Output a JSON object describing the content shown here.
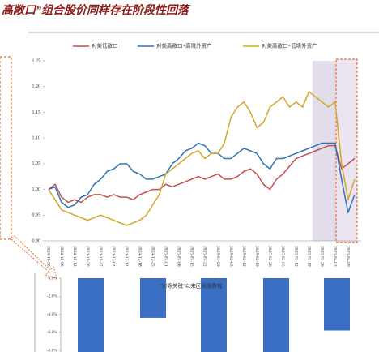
{
  "header": {
    "title": "高敞口”组合股价同样存在阶段性回落"
  },
  "chart_data": [
    {
      "type": "line",
      "categories": [
        "2024-10-30",
        null,
        "2024-11-06",
        null,
        "2024-11-13",
        null,
        "2024-11-20",
        null,
        "2024-11-27",
        null,
        "2024-12-04",
        null,
        "2024-12-11",
        null,
        "2024-12-18",
        null,
        "2024-12-25",
        null,
        "2025-01-01",
        null,
        "2025-01-08",
        null,
        "2025-01-15",
        null,
        "2025-01-22",
        null,
        "2025-01-29",
        null,
        "2025-02-05",
        null,
        "2025-02-12",
        null,
        "2025-02-19",
        null,
        "2025-02-26",
        null,
        "2025-03-05",
        null,
        "2025-03-12",
        null,
        "2025-03-19",
        null,
        "2025-03-26",
        null,
        "2025-04-02",
        null,
        "2025-04-09",
        null
      ],
      "series": [
        {
          "name": "对美低敞口",
          "color": "#c0504d",
          "values": [
            1.0,
            1.01,
            0.985,
            0.975,
            0.98,
            0.975,
            0.985,
            0.99,
            0.99,
            0.985,
            0.99,
            0.985,
            0.985,
            0.98,
            0.99,
            0.995,
            1.0,
            1.0,
            1.01,
            1.005,
            1.01,
            1.015,
            1.02,
            1.025,
            1.02,
            1.025,
            1.03,
            1.02,
            1.02,
            1.025,
            1.035,
            1.04,
            1.03,
            1.01,
            1.0,
            1.02,
            1.03,
            1.045,
            1.06,
            1.065,
            1.07,
            1.075,
            1.08,
            1.085,
            1.085,
            1.04,
            1.05,
            1.06
          ]
        },
        {
          "name": "对美高敞口+高境外资产",
          "color": "#2e75b6",
          "values": [
            1.0,
            1.005,
            0.975,
            0.965,
            0.97,
            0.985,
            0.99,
            1.01,
            1.02,
            1.035,
            1.04,
            1.05,
            1.05,
            1.035,
            1.03,
            1.02,
            1.02,
            1.025,
            1.03,
            1.05,
            1.06,
            1.075,
            1.08,
            1.09,
            1.085,
            1.07,
            1.07,
            1.06,
            1.06,
            1.07,
            1.08,
            1.075,
            1.07,
            1.05,
            1.04,
            1.06,
            1.06,
            1.065,
            1.07,
            1.075,
            1.08,
            1.085,
            1.09,
            1.09,
            1.09,
            1.02,
            0.955,
            0.99
          ]
        },
        {
          "name": "对美高敞口+低境外资产",
          "color": "#d4a62a",
          "values": [
            1.0,
            0.98,
            0.96,
            0.955,
            0.95,
            0.945,
            0.94,
            0.945,
            0.95,
            0.945,
            0.94,
            0.935,
            0.93,
            0.935,
            0.94,
            0.95,
            0.97,
            0.99,
            1.03,
            1.04,
            1.05,
            1.06,
            1.07,
            1.075,
            1.06,
            1.07,
            1.07,
            1.09,
            1.14,
            1.16,
            1.17,
            1.15,
            1.12,
            1.13,
            1.16,
            1.17,
            1.18,
            1.16,
            1.17,
            1.16,
            1.19,
            1.18,
            1.17,
            1.16,
            1.17,
            1.05,
            0.98,
            1.02
          ]
        }
      ],
      "ylim": [
        0.9,
        1.25
      ],
      "yticks": [
        {
          "value": 0.9,
          "label": "0.90"
        },
        {
          "value": 0.95,
          "label": "0.95"
        },
        {
          "value": 1.0,
          "label": "1.00"
        },
        {
          "value": 1.05,
          "label": "1.05"
        },
        {
          "value": 1.1,
          "label": "1.10"
        },
        {
          "value": 1.15,
          "label": "1.15"
        },
        {
          "value": 1.2,
          "label": "1.20"
        },
        {
          "value": 1.25,
          "label": "1.25"
        }
      ],
      "grid": false,
      "legend": "top"
    },
    {
      "type": "bar",
      "categories": [
        null,
        null,
        null,
        null,
        null
      ],
      "series": [
        {
          "name": "“对等关税”以来区间涨跌幅",
          "color": "#3a6fc4",
          "values": [
            -9,
            -4.4,
            -9,
            -9,
            -5.8
          ]
        }
      ],
      "ylim": [
        -8,
        0
      ],
      "yticks": [
        {
          "value": 0,
          "label": "0.0%"
        },
        {
          "value": -2,
          "label": "-2.0%"
        },
        {
          "value": -4,
          "label": "-4.0%"
        },
        {
          "value": -6,
          "label": "-6.0%"
        },
        {
          "value": -8,
          "label": "-8.0%"
        }
      ],
      "grid": false,
      "legend": "top"
    }
  ]
}
